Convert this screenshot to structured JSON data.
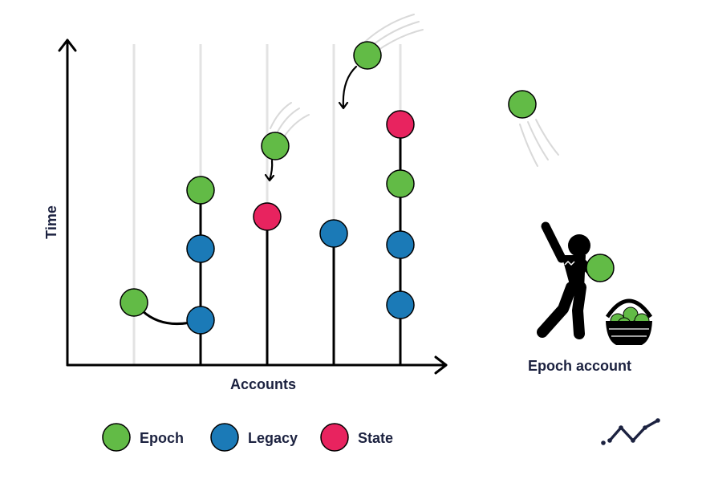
{
  "axes": {
    "y_label": "Time",
    "x_label": "Accounts"
  },
  "legend": [
    {
      "label": "Epoch",
      "color": "#62bb46"
    },
    {
      "label": "Legacy",
      "color": "#1b7ab7"
    },
    {
      "label": "State",
      "color": "#e8235f"
    }
  ],
  "side_label": "Epoch account",
  "colors": {
    "axis": "#000000",
    "gridline": "#e3e3e3",
    "text": "#1c2240",
    "epoch": "#62bb46",
    "legacy": "#1b7ab7",
    "state": "#e8235f"
  },
  "icons": [
    "person-throwing-icon",
    "basket-icon",
    "brand-logo-icon"
  ]
}
